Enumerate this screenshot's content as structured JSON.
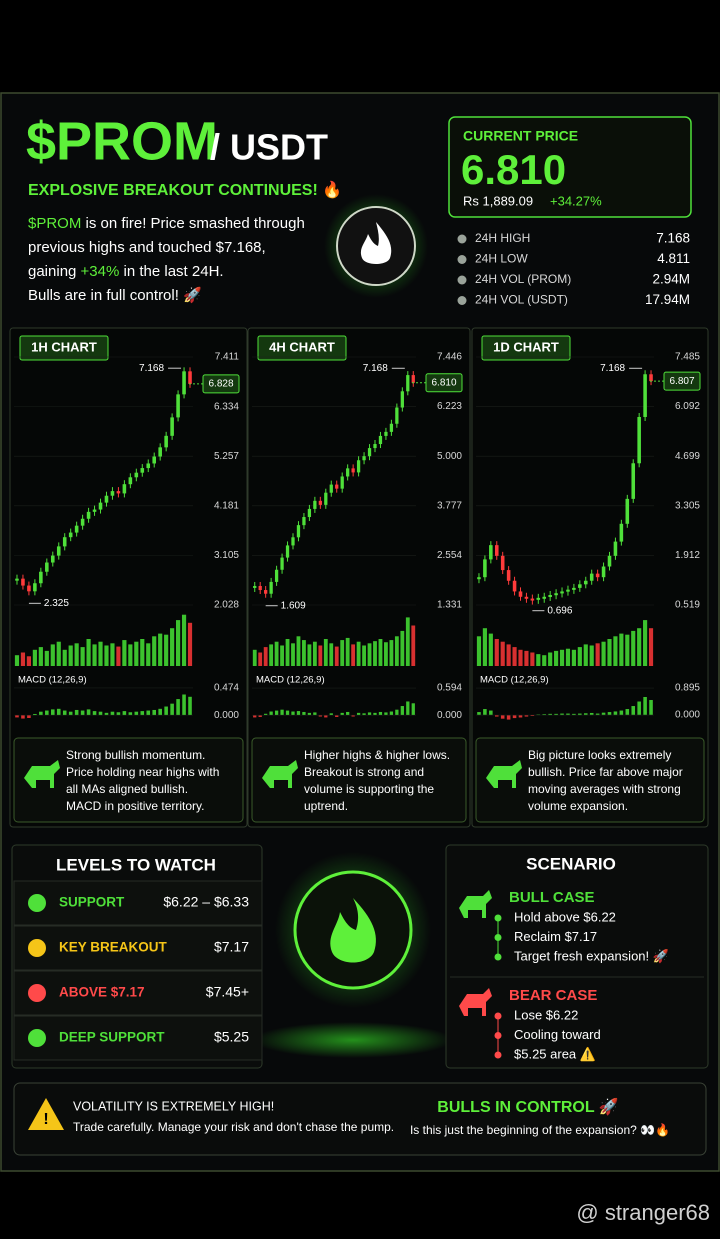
{
  "header": {
    "title": "$PROM",
    "pair": "/ USDT",
    "subtitle": "EXPLOSIVE BREAKOUT CONTINUES! 🔥",
    "description": [
      [
        {
          "text": "$PROM",
          "color": "#5ef03a"
        },
        {
          "text": " is on fire! Price smashed through"
        }
      ],
      [
        {
          "text": "previous highs and touched $7.168,"
        }
      ],
      [
        {
          "text": "gaining "
        },
        {
          "text": "+34%",
          "color": "#5ef03a"
        },
        {
          "text": " in the last 24H."
        }
      ],
      [
        {
          "text": "Bulls are in full control! 🚀"
        }
      ]
    ]
  },
  "price": {
    "label": "CURRENT PRICE",
    "value": "6.810",
    "local": "Rs 1,889.09",
    "change": "+34.27%"
  },
  "stats": [
    {
      "label": "24H HIGH",
      "value": "7.168"
    },
    {
      "label": "24H LOW",
      "value": "4.811"
    },
    {
      "label": "24H VOL (PROM)",
      "value": "2.94M"
    },
    {
      "label": "24H VOL (USDT)",
      "value": "17.94M"
    }
  ],
  "charts": [
    {
      "type": "candlestick",
      "label": "1H CHART",
      "ylim": [
        2.028,
        7.411
      ],
      "yticks": [
        7.411,
        6.334,
        5.257,
        4.181,
        3.105,
        2.028
      ],
      "current": {
        "value": 6.828,
        "label": "6.828"
      },
      "high": 7.168,
      "low": 2.325,
      "closes": [
        2.6,
        2.45,
        2.325,
        2.5,
        2.75,
        2.95,
        3.1,
        3.3,
        3.5,
        3.6,
        3.75,
        3.9,
        4.05,
        4.1,
        4.25,
        4.4,
        4.5,
        4.45,
        4.65,
        4.8,
        4.9,
        5.0,
        5.1,
        5.25,
        5.45,
        5.7,
        6.1,
        6.6,
        7.1,
        6.828
      ],
      "volume_lim": [
        0,
        100
      ],
      "volumes": [
        20,
        25,
        18,
        30,
        35,
        28,
        40,
        45,
        30,
        38,
        42,
        35,
        50,
        40,
        45,
        38,
        42,
        36,
        48,
        40,
        45,
        50,
        42,
        55,
        60,
        58,
        70,
        85,
        95,
        80
      ],
      "macd_label": "MACD (12,26,9)",
      "macd_lim": [
        -0.12,
        0.7
      ],
      "macd_ticks": [
        0.474,
        {
          "value": 0,
          "label": "0.000"
        }
      ],
      "macd": [
        -0.04,
        -0.06,
        -0.05,
        0.02,
        0.06,
        0.08,
        0.1,
        0.11,
        0.08,
        0.06,
        0.09,
        0.08,
        0.1,
        0.07,
        0.06,
        0.04,
        0.06,
        0.05,
        0.07,
        0.05,
        0.06,
        0.07,
        0.08,
        0.09,
        0.11,
        0.15,
        0.2,
        0.28,
        0.36,
        0.32
      ],
      "note": [
        "Strong bullish momentum.",
        "Price holding near highs with",
        "all MAs aligned bullish.",
        "MACD in positive territory."
      ]
    },
    {
      "type": "candlestick",
      "label": "4H CHART",
      "ylim": [
        1.331,
        7.446
      ],
      "yticks": [
        7.446,
        6.223,
        {
          "value": 5,
          "label": "5.000"
        },
        3.777,
        2.554,
        1.331
      ],
      "current": {
        "value": 6.81,
        "label": "6.810"
      },
      "high": 7.168,
      "low": 1.609,
      "closes": [
        1.8,
        1.7,
        1.609,
        1.9,
        2.2,
        2.5,
        2.8,
        3.0,
        3.3,
        3.5,
        3.7,
        3.9,
        3.8,
        4.1,
        4.3,
        4.2,
        4.5,
        4.7,
        4.6,
        4.9,
        5.0,
        5.2,
        5.3,
        5.5,
        5.6,
        5.8,
        6.2,
        6.6,
        7.0,
        6.81
      ],
      "volume_lim": [
        0,
        100
      ],
      "volumes": [
        30,
        25,
        35,
        40,
        45,
        38,
        50,
        42,
        55,
        48,
        40,
        45,
        38,
        50,
        42,
        36,
        48,
        52,
        40,
        45,
        38,
        42,
        46,
        50,
        44,
        48,
        55,
        65,
        90,
        75
      ],
      "macd_label": "MACD (12,26,9)",
      "macd_lim": [
        -0.15,
        0.88
      ],
      "macd_ticks": [
        0.594,
        {
          "value": 0,
          "label": "0.000"
        }
      ],
      "macd": [
        -0.05,
        -0.04,
        0.03,
        0.08,
        0.1,
        0.12,
        0.1,
        0.08,
        0.09,
        0.07,
        0.05,
        0.06,
        -0.03,
        -0.05,
        0.04,
        -0.04,
        0.05,
        0.07,
        -0.03,
        0.05,
        0.04,
        0.06,
        0.05,
        0.07,
        0.06,
        0.08,
        0.12,
        0.2,
        0.3,
        0.26
      ],
      "note": [
        "Higher highs & higher lows.",
        "Breakout is strong and",
        "volume is supporting the",
        "uptrend."
      ]
    },
    {
      "type": "candlestick",
      "label": "1D CHART",
      "ylim": [
        0.519,
        7.485
      ],
      "yticks": [
        7.485,
        6.092,
        4.699,
        3.305,
        1.912,
        0.519
      ],
      "current": {
        "value": 6.807,
        "label": "6.807"
      },
      "high": 7.168,
      "low": 0.696,
      "closes": [
        1.3,
        1.8,
        2.2,
        1.9,
        1.5,
        1.2,
        0.9,
        0.75,
        0.7,
        0.696,
        0.72,
        0.75,
        0.8,
        0.85,
        0.9,
        0.95,
        1.0,
        1.1,
        1.2,
        1.4,
        1.3,
        1.6,
        1.9,
        2.3,
        2.8,
        3.5,
        4.5,
        5.8,
        7.0,
        6.807
      ],
      "volume_lim": [
        0,
        100
      ],
      "volumes": [
        55,
        70,
        60,
        50,
        45,
        40,
        35,
        30,
        28,
        25,
        22,
        20,
        25,
        28,
        30,
        32,
        30,
        35,
        40,
        38,
        42,
        45,
        50,
        55,
        60,
        58,
        65,
        70,
        85,
        70
      ],
      "macd_label": "MACD (12,26,9)",
      "macd_lim": [
        -0.23,
        1.33
      ],
      "macd_ticks": [
        0.895,
        {
          "value": 0,
          "label": "0.000"
        }
      ],
      "macd": [
        0.1,
        0.2,
        0.15,
        -0.05,
        -0.12,
        -0.15,
        -0.1,
        -0.08,
        -0.05,
        -0.03,
        0.02,
        0.03,
        0.04,
        0.04,
        0.05,
        0.05,
        0.04,
        0.05,
        0.06,
        0.07,
        0.05,
        0.08,
        0.1,
        0.12,
        0.15,
        0.2,
        0.3,
        0.45,
        0.6,
        0.5
      ],
      "note": [
        "Big picture looks extremely",
        "bullish. Price far above major",
        "moving averages with strong",
        "volume expansion."
      ]
    }
  ],
  "levels": {
    "title": "LEVELS TO WATCH",
    "rows": [
      {
        "label": "SUPPORT",
        "value": "$6.22 – $6.33",
        "color": "#4fe03a"
      },
      {
        "label": "KEY BREAKOUT",
        "value": "$7.17",
        "color": "#f5c518"
      },
      {
        "label": "ABOVE $7.17",
        "value": "$7.45+",
        "color": "#ff4a4a"
      },
      {
        "label": "DEEP SUPPORT",
        "value": "$5.25",
        "color": "#4fe03a"
      }
    ]
  },
  "scenario": {
    "title": "SCENARIO",
    "cases": [
      {
        "title": "BULL CASE",
        "color": "#4fe03a",
        "items": [
          "Hold above $6.22",
          "Reclaim $7.17",
          "Target fresh expansion! 🚀"
        ]
      },
      {
        "title": "BEAR CASE",
        "color": "#ff4a4a",
        "items": [
          "Lose $6.22",
          "Cooling toward",
          "$5.25 area ⚠️"
        ]
      }
    ]
  },
  "footer": {
    "warning_title": "VOLATILITY IS EXTREMELY HIGH!",
    "warning_text": "Trade carefully. Manage your risk and don't chase the pump.",
    "right_title": "BULLS IN CONTROL 🚀",
    "right_text": "Is this just the beginning of the expansion? 👀🔥"
  },
  "watermark": "@ stranger68"
}
